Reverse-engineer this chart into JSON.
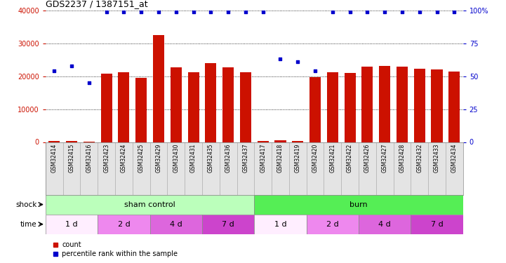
{
  "title": "GDS2237 / 1387151_at",
  "samples": [
    "GSM32414",
    "GSM32415",
    "GSM32416",
    "GSM32423",
    "GSM32424",
    "GSM32425",
    "GSM32429",
    "GSM32430",
    "GSM32431",
    "GSM32435",
    "GSM32436",
    "GSM32437",
    "GSM32417",
    "GSM32418",
    "GSM32419",
    "GSM32420",
    "GSM32421",
    "GSM32422",
    "GSM32426",
    "GSM32427",
    "GSM32428",
    "GSM32432",
    "GSM32433",
    "GSM32434"
  ],
  "counts": [
    300,
    400,
    200,
    20800,
    21200,
    19500,
    32500,
    22800,
    21200,
    23900,
    22800,
    21300,
    400,
    600,
    400,
    19800,
    21200,
    21100,
    23000,
    23100,
    22900,
    22200,
    22100,
    21400
  ],
  "percentiles": [
    54,
    58,
    45,
    99,
    99,
    99,
    99,
    99,
    99,
    99,
    99,
    99,
    99,
    63,
    61,
    54,
    99,
    99,
    99,
    99,
    99,
    99,
    99,
    99
  ],
  "bar_color": "#cc1100",
  "dot_color": "#0000cc",
  "background": "#ffffff",
  "ylim_left": [
    0,
    40000
  ],
  "ylim_right": [
    0,
    100
  ],
  "yticks_left": [
    0,
    10000,
    20000,
    30000,
    40000
  ],
  "yticks_right": [
    0,
    25,
    50,
    75,
    100
  ],
  "ytick_labels_left": [
    "0",
    "10000",
    "20000",
    "30000",
    "40000"
  ],
  "ytick_labels_right": [
    "0",
    "25",
    "50",
    "75",
    "100%"
  ],
  "shock_groups": [
    {
      "label": "sham control",
      "start": 0,
      "end": 12
    },
    {
      "label": "burn",
      "start": 12,
      "end": 24
    }
  ],
  "shock_colors": [
    "#bbffbb",
    "#55ee55"
  ],
  "time_groups": [
    {
      "label": "1 d",
      "start": 0,
      "end": 3
    },
    {
      "label": "2 d",
      "start": 3,
      "end": 6
    },
    {
      "label": "4 d",
      "start": 6,
      "end": 9
    },
    {
      "label": "7 d",
      "start": 9,
      "end": 12
    },
    {
      "label": "1 d",
      "start": 12,
      "end": 15
    },
    {
      "label": "2 d",
      "start": 15,
      "end": 18
    },
    {
      "label": "4 d",
      "start": 18,
      "end": 21
    },
    {
      "label": "7 d",
      "start": 21,
      "end": 24
    }
  ],
  "time_colors": [
    "#ffeeff",
    "#ee88ee",
    "#dd66dd",
    "#cc44cc",
    "#ffeeff",
    "#ee88ee",
    "#dd66dd",
    "#cc44cc"
  ]
}
